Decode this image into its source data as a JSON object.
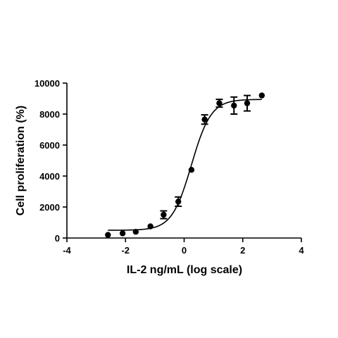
{
  "chart_data": {
    "type": "scatter",
    "title": "",
    "xlabel": "IL-2 ng/mL (log scale)",
    "ylabel": "Cell proliferation (%)",
    "xlim": [
      -4,
      4
    ],
    "ylim": [
      0,
      10000
    ],
    "xticks": [
      -4,
      -2,
      0,
      2,
      4
    ],
    "yticks": [
      0,
      2000,
      4000,
      6000,
      8000,
      10000
    ],
    "grid": false,
    "legend": "none",
    "series": [
      {
        "points": [
          {
            "x": -2.6,
            "y": 200,
            "err": 0
          },
          {
            "x": -2.1,
            "y": 300,
            "err": 0
          },
          {
            "x": -1.65,
            "y": 400,
            "err": 0
          },
          {
            "x": -1.15,
            "y": 750,
            "err": 0
          },
          {
            "x": -0.7,
            "y": 1500,
            "err": 250
          },
          {
            "x": -0.2,
            "y": 2350,
            "err": 300
          },
          {
            "x": 0.25,
            "y": 4400,
            "err": 0
          },
          {
            "x": 0.7,
            "y": 7650,
            "err": 300
          },
          {
            "x": 1.2,
            "y": 8700,
            "err": 250
          },
          {
            "x": 1.7,
            "y": 8550,
            "err": 550
          },
          {
            "x": 2.15,
            "y": 8700,
            "err": 500
          },
          {
            "x": 2.65,
            "y": 9200,
            "err": 0
          }
        ],
        "fit": {
          "bottom": 500,
          "top": 8950,
          "logEC50": 0.25,
          "hill": 1.3
        }
      }
    ]
  }
}
